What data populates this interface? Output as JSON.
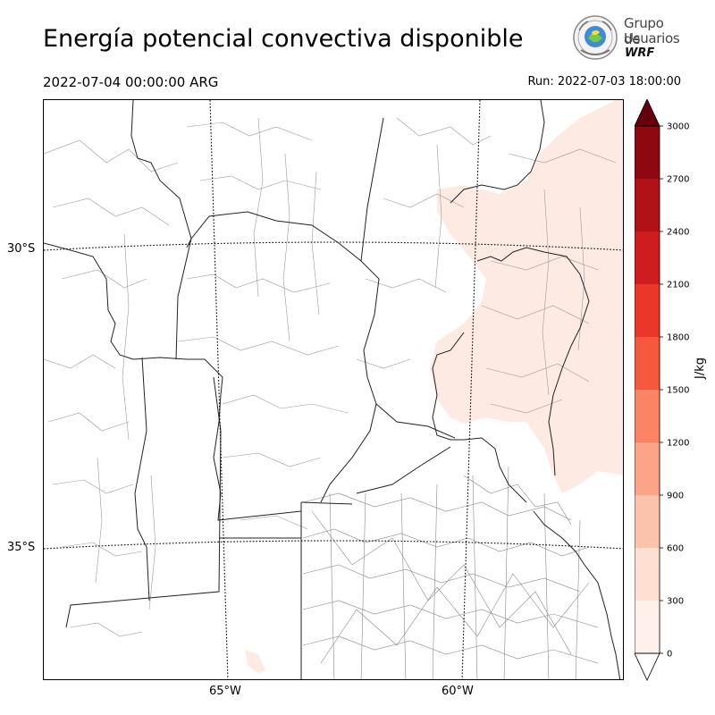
{
  "header": {
    "title": "Energía potencial convectiva disponible",
    "valid_time": "2022-07-04 00:00:00 ARG",
    "run_time": "Run: 2022-07-03 18:00:00"
  },
  "logo": {
    "line1": "Grupo de",
    "line2": "Usuarios",
    "line3": "WRF"
  },
  "map": {
    "lat_labels": [
      "30°S",
      "35°S"
    ],
    "lon_labels": [
      "65°W",
      "60°W"
    ]
  },
  "colorbar": {
    "unit": "J/kg",
    "ticks": [
      "0",
      "300",
      "600",
      "900",
      "1200",
      "1500",
      "1800",
      "2100",
      "2400",
      "2700",
      "3000"
    ],
    "colors": [
      "#fff0eb",
      "#fee0d2",
      "#fcc3ab",
      "#fca487",
      "#fb8464",
      "#f6583e",
      "#eb362a",
      "#cf1c1f",
      "#b11218",
      "#8e0811",
      "#67000d"
    ],
    "extend_low_color": "#ffffff",
    "extend_high_color": "#67000d"
  }
}
